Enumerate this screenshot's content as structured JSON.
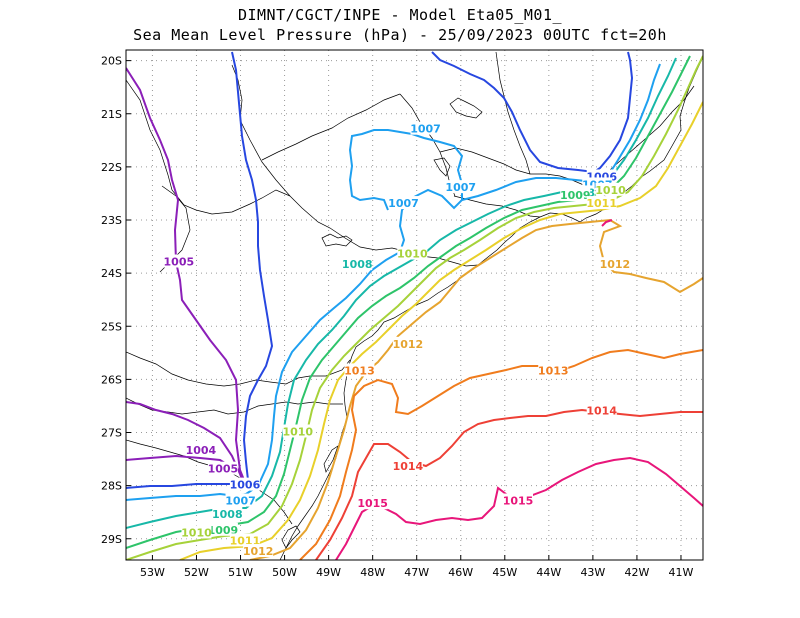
{
  "title_line1": "DIMNT/CGCT/INPE -  Model Eta05_M01_",
  "title_line2": "Sea Mean Level Pressure (hPa) - 25/09/2023 00UTC fct=20h",
  "x_ticks": [
    "53W",
    "52W",
    "51W",
    "50W",
    "49W",
    "48W",
    "47W",
    "46W",
    "45W",
    "44W",
    "43W",
    "42W",
    "41W"
  ],
  "y_ticks": [
    "20S",
    "21S",
    "22S",
    "23S",
    "24S",
    "25S",
    "26S",
    "27S",
    "28S",
    "29S"
  ],
  "chart_data": {
    "type": "contour-map",
    "variable": "Sea Mean Level Pressure",
    "units": "hPa",
    "lon_range": [
      -53.6,
      -40.5
    ],
    "lat_range": [
      -29.4,
      -19.8
    ],
    "levels": [
      {
        "value": 1004,
        "color": "#8b1fb8"
      },
      {
        "value": 1005,
        "color": "#8b1fb8"
      },
      {
        "value": 1006,
        "color": "#2747e0"
      },
      {
        "value": 1007,
        "color": "#1ea0f0"
      },
      {
        "value": 1008,
        "color": "#17b8a8"
      },
      {
        "value": 1009,
        "color": "#2ec46a"
      },
      {
        "value": 1010,
        "color": "#a6d23a"
      },
      {
        "value": 1011,
        "color": "#e8d02a"
      },
      {
        "value": 1012,
        "color": "#e6a42f"
      },
      {
        "value": 1013,
        "color": "#f07c1d"
      },
      {
        "value": 1014,
        "color": "#ee4036"
      },
      {
        "value": 1015,
        "color": "#e8167a"
      }
    ],
    "contour_labels": [
      {
        "text": "1007",
        "lon": -46.8,
        "lat": -21.3,
        "color": "#1ea0f0"
      },
      {
        "text": "1007",
        "lon": -47.3,
        "lat": -22.7,
        "color": "#1ea0f0"
      },
      {
        "text": "1007",
        "lon": -46.0,
        "lat": -22.4,
        "color": "#1ea0f0"
      },
      {
        "text": "1006",
        "lon": -42.8,
        "lat": -22.2,
        "color": "#2747e0"
      },
      {
        "text": "1007",
        "lon": -42.9,
        "lat": -22.35,
        "color": "#1ea0f0"
      },
      {
        "text": "1008",
        "lon": -43.3,
        "lat": -22.5,
        "color": "#17b8a8"
      },
      {
        "text": "1009",
        "lon": -43.4,
        "lat": -22.55,
        "color": "#2ec46a"
      },
      {
        "text": "1010",
        "lon": -42.6,
        "lat": -22.45,
        "color": "#a6d23a"
      },
      {
        "text": "1011",
        "lon": -42.8,
        "lat": -22.7,
        "color": "#e8d02a"
      },
      {
        "text": "1012",
        "lon": -42.5,
        "lat": -23.85,
        "color": "#e6a42f"
      },
      {
        "text": "1008",
        "lon": -48.35,
        "lat": -23.85,
        "color": "#17b8a8"
      },
      {
        "text": "1010",
        "lon": -47.1,
        "lat": -23.65,
        "color": "#a6d23a"
      },
      {
        "text": "1012",
        "lon": -47.2,
        "lat": -25.35,
        "color": "#e6a42f"
      },
      {
        "text": "1013",
        "lon": -48.3,
        "lat": -25.85,
        "color": "#f07c1d"
      },
      {
        "text": "1013",
        "lon": -43.9,
        "lat": -25.85,
        "color": "#f07c1d"
      },
      {
        "text": "1014",
        "lon": -42.8,
        "lat": -26.6,
        "color": "#ee4036"
      },
      {
        "text": "1014",
        "lon": -47.2,
        "lat": -27.65,
        "color": "#ee4036"
      },
      {
        "text": "1015",
        "lon": -48.0,
        "lat": -28.35,
        "color": "#e8167a"
      },
      {
        "text": "1015",
        "lon": -44.7,
        "lat": -28.3,
        "color": "#e8167a"
      },
      {
        "text": "1005",
        "lon": -52.4,
        "lat": -23.8,
        "color": "#8b1fb8"
      },
      {
        "text": "1004",
        "lon": -51.9,
        "lat": -27.35,
        "color": "#8b1fb8"
      },
      {
        "text": "1005",
        "lon": -51.4,
        "lat": -27.7,
        "color": "#8b1fb8"
      },
      {
        "text": "1006",
        "lon": -50.9,
        "lat": -28.0,
        "color": "#2747e0"
      },
      {
        "text": "1007",
        "lon": -51.0,
        "lat": -28.3,
        "color": "#1ea0f0"
      },
      {
        "text": "1008",
        "lon": -51.3,
        "lat": -28.55,
        "color": "#17b8a8"
      },
      {
        "text": "1009",
        "lon": -51.4,
        "lat": -28.85,
        "color": "#2ec46a"
      },
      {
        "text": "1010",
        "lon": -52.0,
        "lat": -28.9,
        "color": "#a6d23a"
      },
      {
        "text": "1010",
        "lon": -49.7,
        "lat": -27.0,
        "color": "#a6d23a"
      },
      {
        "text": "1011",
        "lon": -50.9,
        "lat": -29.05,
        "color": "#e8d02a"
      },
      {
        "text": "1012",
        "lon": -50.6,
        "lat": -29.25,
        "color": "#e6a42f"
      }
    ]
  }
}
